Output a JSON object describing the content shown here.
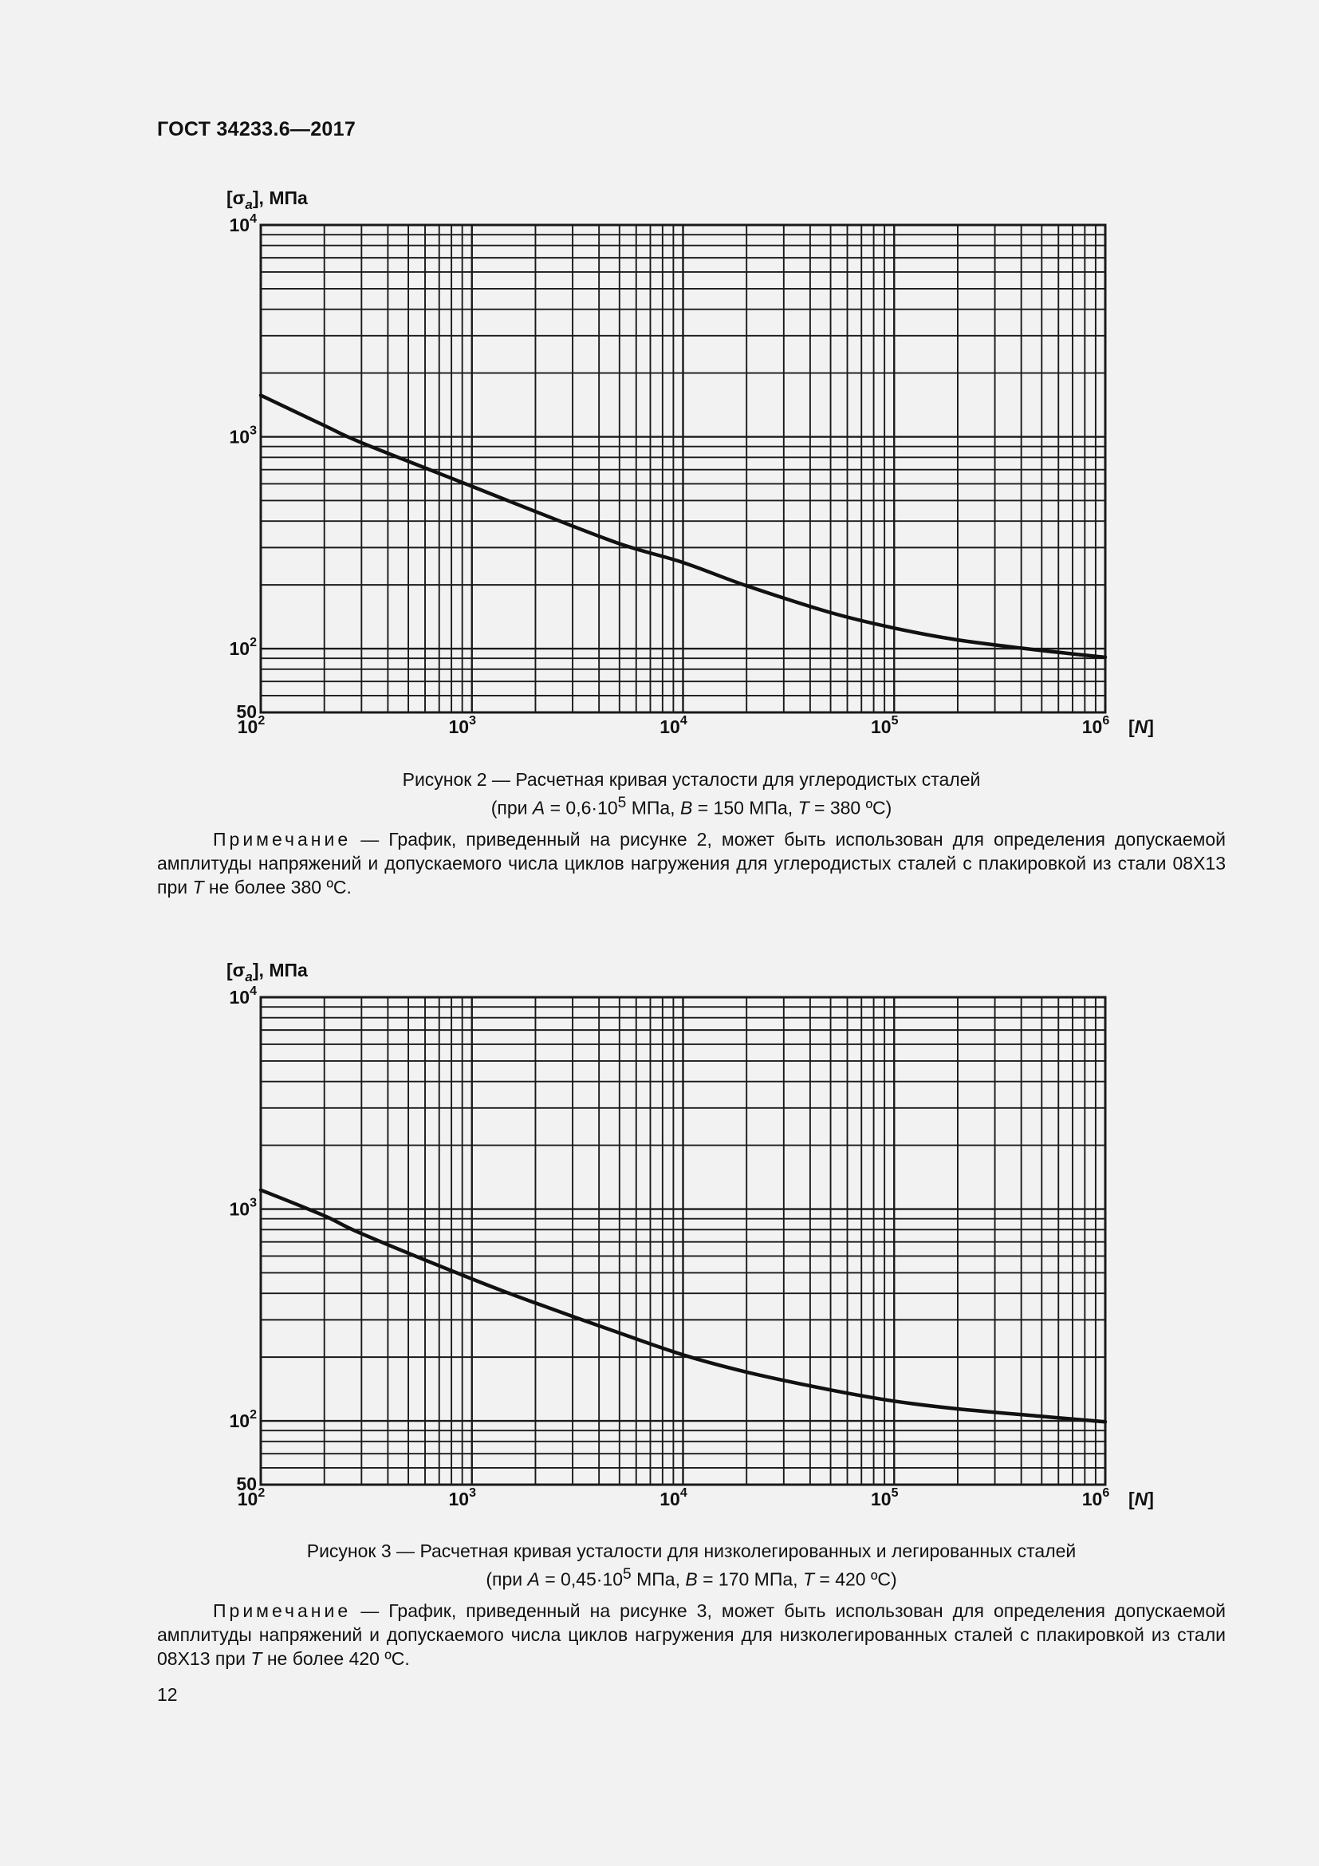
{
  "header": {
    "doc_id": "ГОСТ 34233.6—2017"
  },
  "chart_data": [
    {
      "type": "line",
      "figure_id": "figure-2",
      "ylabel_prefix": "[σ",
      "ylabel_sub": "a",
      "ylabel_suffix": "], МПа",
      "xlabel": "[N]",
      "xlim": [
        100,
        1000000
      ],
      "ylim": [
        50,
        10000
      ],
      "xscale": "log",
      "yscale": "log",
      "grid": true,
      "x_ticks": [
        {
          "base": "10",
          "exp": "2"
        },
        {
          "base": "10",
          "exp": "3"
        },
        {
          "base": "10",
          "exp": "4"
        },
        {
          "base": "10",
          "exp": "5"
        },
        {
          "base": "10",
          "exp": "6"
        }
      ],
      "y_ticks": [
        {
          "value": 50,
          "base": "50",
          "exp": ""
        },
        {
          "value": 100,
          "base": "10",
          "exp": "2"
        },
        {
          "value": 1000,
          "base": "10",
          "exp": "3"
        },
        {
          "value": 10000,
          "base": "10",
          "exp": "4"
        }
      ],
      "series": [
        {
          "name": "curve",
          "x": [
            100,
            200,
            300,
            1000,
            2000,
            5000,
            10000,
            20000,
            50000,
            100000,
            200000,
            500000,
            1000000
          ],
          "y": [
            1570,
            1130,
            938,
            584,
            444,
            313,
            255,
            198,
            148,
            125,
            110,
            98,
            91
          ]
        }
      ]
    },
    {
      "type": "line",
      "figure_id": "figure-3",
      "ylabel_prefix": "[σ",
      "ylabel_sub": "a",
      "ylabel_suffix": "], МПа",
      "xlabel": "[N]",
      "xlim": [
        100,
        1000000
      ],
      "ylim": [
        50,
        10000
      ],
      "xscale": "log",
      "yscale": "log",
      "grid": true,
      "x_ticks": [
        {
          "base": "10",
          "exp": "2"
        },
        {
          "base": "10",
          "exp": "3"
        },
        {
          "base": "10",
          "exp": "4"
        },
        {
          "base": "10",
          "exp": "5"
        },
        {
          "base": "10",
          "exp": "6"
        }
      ],
      "y_ticks": [
        {
          "value": 50,
          "base": "50",
          "exp": ""
        },
        {
          "value": 100,
          "base": "10",
          "exp": "2"
        },
        {
          "value": 1000,
          "base": "10",
          "exp": "3"
        },
        {
          "value": 10000,
          "base": "10",
          "exp": "4"
        }
      ],
      "series": [
        {
          "name": "curve",
          "x": [
            100,
            200,
            300,
            1000,
            2000,
            5000,
            10000,
            20000,
            50000,
            100000,
            200000,
            500000,
            1000000
          ],
          "y": [
            1230,
            930,
            766,
            468,
            360,
            260,
            205,
            170,
            140,
            124,
            114,
            105,
            99
          ]
        }
      ]
    }
  ],
  "figure2": {
    "caption_line1": "Рисунок 2 — Расчетная кривая усталости для углеродистых сталей",
    "cap_p1": "(при ",
    "cap_A": "A",
    "cap_p2": " = 0,6·10",
    "cap_exp": "5",
    "cap_p3": " МПа, ",
    "cap_B": "B",
    "cap_p4": " = 150 МПа, ",
    "cap_T": "T",
    "cap_p5": " = 380 ºC)",
    "note_label": "Примечание",
    "note_p1": " — График, приведенный на рисунке 2, может быть использован для определения допуска­емой амплитуды напряжений и допускаемого числа циклов нагружения для углеродистых сталей с плакировкой из стали 08Х13 при ",
    "note_T": "T",
    "note_p2": " не более 380 ºC."
  },
  "figure3": {
    "caption_line1": "Рисунок 3 — Расчетная кривая усталости для низколегированных и легированных сталей",
    "cap_p1": "(при ",
    "cap_A": "A",
    "cap_p2": " = 0,45·10",
    "cap_exp": "5",
    "cap_p3": " МПа, ",
    "cap_B": "B",
    "cap_p4": " = 170 МПа, ",
    "cap_T": "T",
    "cap_p5": " = 420 ºC)",
    "note_label": "Примечание",
    "note_p1": " — График, приведенный на рисунке 3, может быть использован для определения допускае­мой амплитуды напряжений и допускаемого числа циклов нагружения для низколегированных сталей с плакиров­кой из стали 08Х13 при ",
    "note_T": "T",
    "note_p2": " не более 420 ºC."
  },
  "footer": {
    "page_number": "12"
  }
}
